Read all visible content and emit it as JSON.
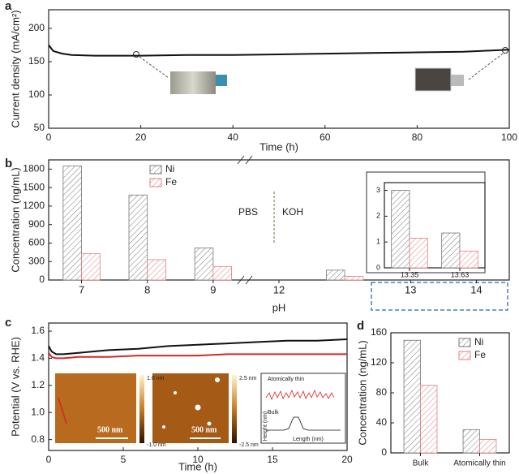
{
  "chart_data": [
    {
      "label": "a",
      "type": "line",
      "xlabel": "Time (h)",
      "ylabel": "Current density (mA/cm²)",
      "x": [
        0,
        1,
        3,
        5,
        10,
        20,
        30,
        40,
        50,
        60,
        70,
        80,
        90,
        100
      ],
      "series": [
        {
          "color": "#111111",
          "values": [
            175,
            166,
            162,
            160,
            159,
            159,
            160,
            160,
            161,
            162,
            163,
            164,
            165,
            168
          ]
        }
      ],
      "xlim": [
        0,
        100
      ],
      "xticks": [
        0,
        20,
        40,
        60,
        80,
        100
      ],
      "ylim": [
        50,
        228
      ],
      "yticks": [
        50,
        100,
        150,
        200
      ]
    },
    {
      "label": "b",
      "type": "bar",
      "xlabel": "pH",
      "ylabel": "Concentration (ng/mL)",
      "categories": [
        "7",
        "8",
        "9",
        "12",
        null,
        "13",
        "14"
      ],
      "series": [
        {
          "name": "Ni",
          "color": "#777777",
          "values": [
            1850,
            1380,
            520,
            null,
            160,
            null,
            null
          ]
        },
        {
          "name": "Fe",
          "color": "#e08080",
          "values": [
            430,
            330,
            220,
            null,
            60,
            null,
            null
          ]
        }
      ],
      "ylim": [
        0,
        1950
      ],
      "yticks": [
        0,
        300,
        600,
        900,
        1200,
        1500,
        1800
      ],
      "legend": "upper-left",
      "annotations": [
        "PBS",
        "KOH"
      ]
    },
    {
      "type": "bar",
      "categories": [
        "13.35",
        "13.63"
      ],
      "series": [
        {
          "color": "#777777",
          "values": [
            3.0,
            1.35
          ]
        },
        {
          "color": "#e08080",
          "values": [
            1.15,
            0.65
          ]
        }
      ],
      "ylim": [
        0,
        3.3
      ],
      "yticks": [
        0,
        1,
        2,
        3
      ]
    },
    {
      "label": "c",
      "type": "line",
      "xlabel": "Time (h)",
      "ylabel": "Potential (V vs. RHE)",
      "x": [
        0,
        0.2,
        0.5,
        1,
        2,
        4,
        6,
        8,
        10,
        12,
        14,
        16,
        18,
        20
      ],
      "series": [
        {
          "color": "#111111",
          "values": [
            1.49,
            1.45,
            1.43,
            1.43,
            1.44,
            1.46,
            1.47,
            1.49,
            1.5,
            1.51,
            1.52,
            1.53,
            1.53,
            1.54
          ]
        },
        {
          "color": "#d62728",
          "values": [
            1.44,
            1.41,
            1.4,
            1.4,
            1.41,
            1.41,
            1.42,
            1.42,
            1.42,
            1.43,
            1.43,
            1.43,
            1.43,
            1.43
          ]
        }
      ],
      "xlim": [
        0,
        20
      ],
      "xticks": [
        0,
        5,
        10,
        15,
        20
      ],
      "ylim": [
        0.72,
        1.66
      ],
      "yticks": [
        {
          "value": 0.8,
          "label": "0.8"
        },
        {
          "value": 1.0,
          "label": "1.0"
        },
        {
          "value": 1.2,
          "label": "1.2"
        },
        {
          "value": 1.4,
          "label": "1.4"
        },
        {
          "value": 1.6,
          "label": "1.6"
        }
      ],
      "annotations": [
        "1.0 nm",
        "-1.0 nm",
        "500 nm",
        "2.5 nm",
        "-2.5 nm",
        "500 nm",
        "Atomically thin",
        "Bulk",
        "Height (nm)",
        "Length (nm)"
      ]
    },
    {
      "label": "d",
      "type": "bar",
      "ylabel": "Concentration (ng/mL)",
      "categories": [
        "Bulk",
        "Atomically thin"
      ],
      "series": [
        {
          "name": "Ni",
          "color": "#777777",
          "values": [
            150,
            31
          ]
        },
        {
          "name": "Fe",
          "color": "#e08080",
          "values": [
            90,
            18
          ]
        }
      ],
      "ylim": [
        0,
        160
      ],
      "yticks": [
        0,
        40,
        80,
        120,
        160
      ],
      "legend": "upper-right"
    }
  ]
}
